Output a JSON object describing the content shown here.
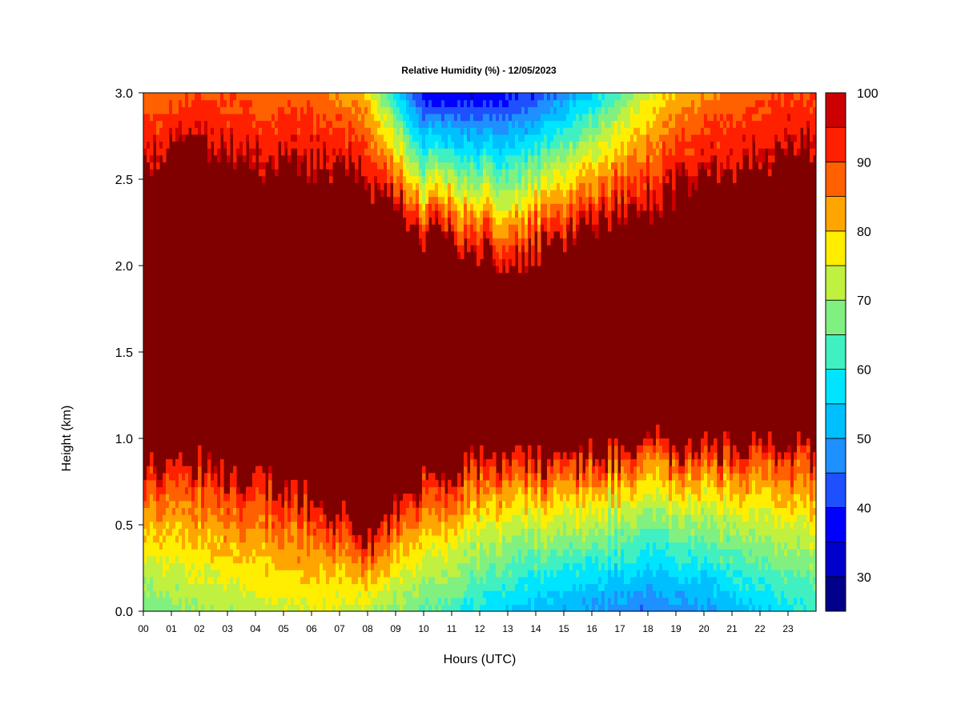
{
  "chart_data": {
    "type": "heatmap",
    "title": "Relative Humidity (%) - 12/05/2023",
    "xlabel": "Hours (UTC)",
    "ylabel": "Height (km)",
    "xlim": [
      0,
      24
    ],
    "ylim": [
      0.0,
      3.0
    ],
    "x_ticks": [
      "00",
      "01",
      "02",
      "03",
      "04",
      "05",
      "06",
      "07",
      "08",
      "09",
      "10",
      "11",
      "12",
      "13",
      "14",
      "15",
      "16",
      "17",
      "18",
      "19",
      "20",
      "21",
      "22",
      "23"
    ],
    "y_ticks": [
      "0.0",
      "0.5",
      "1.0",
      "1.5",
      "2.0",
      "2.5",
      "3.0"
    ],
    "colorbar": {
      "levels": [
        25,
        30,
        35,
        40,
        45,
        50,
        55,
        60,
        65,
        70,
        75,
        80,
        85,
        90,
        95,
        100
      ],
      "colors": [
        "#00008b",
        "#0000cd",
        "#0000ff",
        "#1e50ff",
        "#1e90ff",
        "#00bfff",
        "#00e5ff",
        "#40f0c0",
        "#80f080",
        "#c0f040",
        "#ffee00",
        "#ffa500",
        "#ff6000",
        "#ff2000",
        "#cc0000",
        "#800000"
      ],
      "tick_labels": [
        "30",
        "40",
        "50",
        "60",
        "70",
        "80",
        "90",
        "100"
      ]
    },
    "summary_profile": {
      "hours": [
        0,
        2,
        4,
        6,
        8,
        10,
        12,
        14,
        16,
        18,
        20,
        22,
        24
      ],
      "saturated_layer_top_km": [
        2.6,
        2.7,
        2.6,
        2.6,
        2.5,
        2.2,
        2.05,
        2.1,
        2.25,
        2.35,
        2.55,
        2.6,
        2.7
      ],
      "saturated_layer_base_km": [
        0.8,
        0.85,
        0.75,
        0.65,
        0.4,
        0.75,
        0.85,
        0.85,
        0.9,
        0.95,
        0.95,
        0.95,
        0.9
      ],
      "min_rh_top_percent": [
        85,
        90,
        87,
        88,
        80,
        35,
        35,
        40,
        55,
        75,
        85,
        88,
        90
      ],
      "min_rh_surface_percent": [
        65,
        70,
        72,
        75,
        72,
        65,
        58,
        52,
        48,
        45,
        48,
        55,
        60
      ]
    }
  }
}
